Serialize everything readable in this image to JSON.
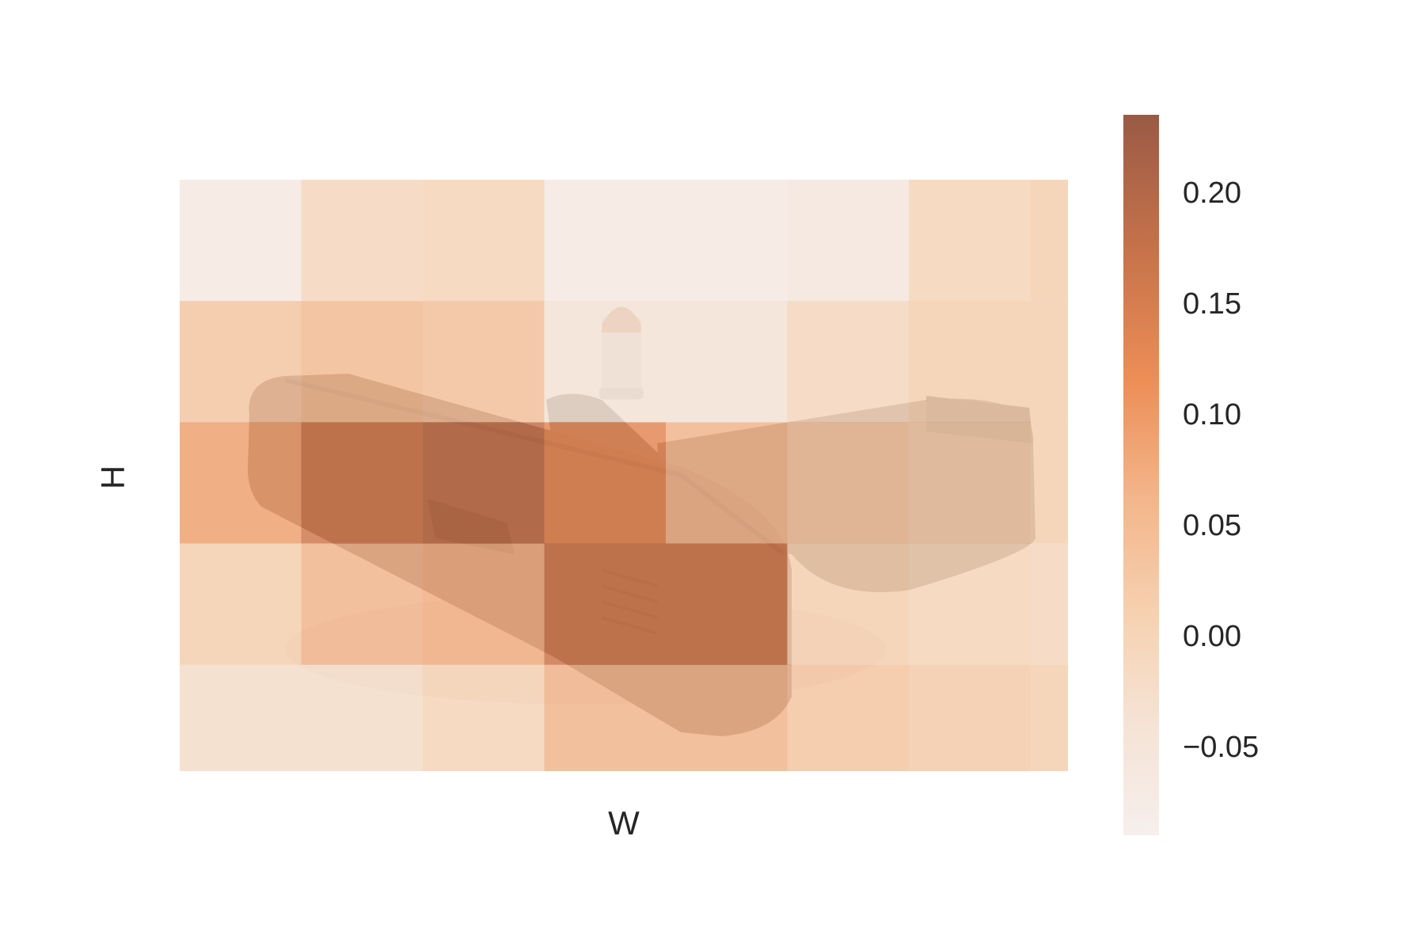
{
  "chart_data": {
    "type": "heatmap",
    "title": "",
    "xlabel": "W",
    "ylabel": "H",
    "grid": false,
    "colormap": [
      "#f6efec",
      "#f5e3d6",
      "#f6d2b2",
      "#f3b58a",
      "#ed8e57",
      "#c9744b",
      "#9a5a45"
    ],
    "colorbar": {
      "range": [
        -0.09,
        0.235
      ],
      "ticks": [
        -0.05,
        0.0,
        0.05,
        0.1,
        0.15,
        0.2
      ],
      "tick_labels": [
        "−0.05",
        "0.00",
        "0.05",
        "0.10",
        "0.15",
        "0.20"
      ]
    },
    "rows": 5,
    "cols": 8,
    "values": [
      [
        -0.07,
        0.0,
        0.01,
        -0.07,
        -0.07,
        -0.06,
        0.01,
        0.02
      ],
      [
        0.04,
        0.06,
        0.05,
        -0.04,
        -0.04,
        0.0,
        0.02,
        0.02
      ],
      [
        0.1,
        0.17,
        0.19,
        0.14,
        0.07,
        0.04,
        0.03,
        0.02
      ],
      [
        0.02,
        0.07,
        0.08,
        0.17,
        0.17,
        0.02,
        0.01,
        0.0
      ],
      [
        -0.02,
        -0.02,
        0.01,
        0.07,
        0.07,
        0.04,
        0.03,
        0.02
      ]
    ],
    "background_image": "pistol-with-bullet-photo"
  }
}
